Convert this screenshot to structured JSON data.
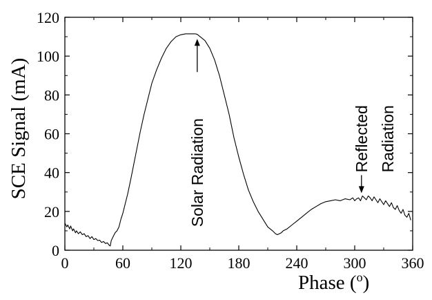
{
  "chart_data": {
    "type": "line",
    "title": "",
    "xlabel": "Phase (",
    "xlabel_unit": "o",
    "xlabel_close": ")",
    "ylabel": "SCE Signal (mA)",
    "xlim": [
      0,
      360
    ],
    "ylim": [
      0,
      120
    ],
    "x_ticks": [
      "0",
      "60",
      "120",
      "180",
      "240",
      "300",
      "360"
    ],
    "y_ticks": [
      "0",
      "20",
      "40",
      "60",
      "80",
      "100",
      "120"
    ],
    "grid": false,
    "legend": "none",
    "line_color": "#000000",
    "series": [
      {
        "x": [
          0,
          2,
          3,
          5,
          6,
          8,
          9,
          11,
          12,
          14,
          16,
          18,
          20,
          22,
          24,
          26,
          28,
          30,
          32,
          34,
          36,
          38,
          40,
          42,
          44,
          46,
          47,
          48,
          50,
          52,
          54,
          56,
          58,
          60,
          62,
          65,
          68,
          70,
          74,
          78,
          82,
          86,
          90,
          95,
          100,
          105,
          110,
          115,
          120,
          125,
          130,
          135,
          137,
          140,
          145,
          150,
          155,
          160,
          165,
          170,
          175,
          180,
          185,
          190,
          195,
          200,
          205,
          210,
          215,
          218,
          220,
          222,
          224,
          226,
          230,
          235,
          240,
          245,
          250,
          255,
          260,
          265,
          270,
          275,
          280,
          285,
          290,
          295,
          298,
          300,
          302,
          304,
          306,
          308,
          310,
          312,
          314,
          316,
          318,
          320,
          322,
          324,
          326,
          328,
          330,
          332,
          334,
          336,
          338,
          340,
          342,
          344,
          346,
          348,
          350,
          352,
          354,
          356,
          358
        ],
        "y": [
          14,
          12,
          13,
          11,
          12.5,
          10,
          11,
          9,
          10,
          8.5,
          9.5,
          8,
          8.5,
          7,
          7.5,
          6,
          7,
          5.5,
          6,
          5,
          5.2,
          4,
          4.5,
          3.5,
          3.8,
          2.5,
          2.2,
          5,
          7,
          9,
          10,
          12,
          16,
          19,
          23,
          29,
          36,
          41,
          51,
          61,
          70,
          78,
          86,
          93,
          99,
          104,
          107.5,
          110,
          111,
          111.5,
          111.5,
          111.5,
          111.2,
          110,
          108,
          104,
          98,
          90,
          80,
          70,
          58,
          48,
          39,
          31,
          25,
          20,
          16,
          12,
          10,
          8.5,
          8,
          8.5,
          9,
          10,
          11,
          13,
          15,
          17,
          19,
          21,
          22.5,
          24,
          25,
          25.5,
          26,
          25.5,
          26.5,
          26,
          27,
          25.5,
          26.5,
          27,
          25.5,
          28,
          27,
          26,
          28,
          27,
          25.5,
          27.5,
          26,
          24.5,
          26.5,
          25,
          23.5,
          25.5,
          24,
          22.5,
          24.5,
          22,
          21,
          23,
          20.5,
          19,
          21,
          18,
          17,
          19,
          15.5
        ]
      }
    ],
    "annotations": [
      {
        "text": "Solar Radiation",
        "x": 137,
        "y": 111
      },
      {
        "text_line1": "Reflected",
        "text_line2": "Radiation",
        "x": 307,
        "y": 28
      }
    ]
  }
}
